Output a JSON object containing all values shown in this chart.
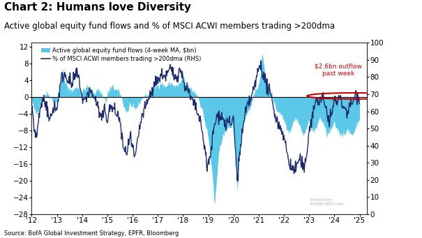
{
  "title": "Chart 2: Humans love Diversity",
  "subtitle": "Active global equity fund flows and % of MSCI ACWI members trading >200dma",
  "source": "Source: BofA Global Investment Strategy, EPFR, Bloomberg",
  "legend1": "Active global equity fund flows (4-week MA, $bn)",
  "legend2": "% of MSCI ACWI members trading >200dma (RHS)",
  "annotation": "$2.6bn outflow\npast week",
  "bar_color": "#5BC8E8",
  "line_color": "#1B2A6B",
  "annotation_color": "#CC0000",
  "zero_line_color": "#000000",
  "ylim_left": [
    -28,
    13
  ],
  "ylim_right": [
    0,
    100
  ],
  "yticks_left": [
    -28,
    -24,
    -20,
    -16,
    -12,
    -8,
    -4,
    0,
    4,
    8,
    12
  ],
  "yticks_right": [
    0,
    10,
    20,
    30,
    40,
    50,
    60,
    70,
    80,
    90,
    100
  ],
  "xlabel_ticks": [
    "'12",
    "'13",
    "'14",
    "'15",
    "'16",
    "'17",
    "'18",
    "'19",
    "'20",
    "'21",
    "'22",
    "'23",
    "'24",
    "'25"
  ],
  "background_color": "#ffffff",
  "title_fontsize": 11,
  "subtitle_fontsize": 8.5,
  "axis_fontsize": 7.5
}
